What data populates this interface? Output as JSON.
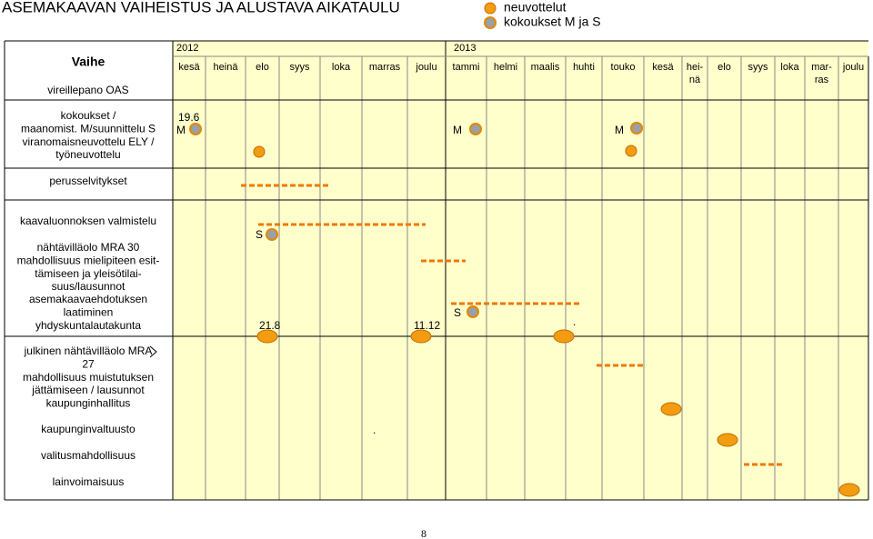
{
  "header": {
    "title": "ASEMAKAAVAN VAIHEISTUS JA ALUSTAVA AIKATAULU"
  },
  "legend": [
    "neuvottelut",
    "kokoukset M ja S"
  ],
  "table": {
    "phase_header": "Vaihe",
    "years": [
      "2012",
      "2013"
    ],
    "months": [
      [
        "kesä"
      ],
      [
        "heinä"
      ],
      [
        "elo"
      ],
      [
        "syys"
      ],
      [
        "loka"
      ],
      [
        "marras"
      ],
      [
        "joulu"
      ],
      [
        "tammi"
      ],
      [
        "helmi"
      ],
      [
        "maalis"
      ],
      [
        "huhti"
      ],
      [
        "touko"
      ],
      [
        "kesä"
      ],
      [
        "hei-",
        "nä"
      ],
      [
        "elo"
      ],
      [
        "syys"
      ],
      [
        "loka"
      ],
      [
        "mar-",
        "ras"
      ],
      [
        "joulu"
      ]
    ],
    "phases": [
      [
        "vireillepano OAS"
      ],
      [
        "kokoukset /",
        "maanomist. M/suunnittelu S",
        "viranomaisneuvottelu ELY /",
        "työneuvottelu"
      ],
      [
        "perusselvitykset"
      ],
      [
        "kaavaluonnoksen valmistelu"
      ],
      [
        "nähtävilläolo MRA 30",
        "mahdollisuus mielipiteen esit-",
        "tämiseen ja yleisötilai-",
        "suus/lausunnot"
      ],
      [
        "asemakaavaehdotuksen",
        "laatiminen"
      ],
      [
        "yhdyskuntalautakunta"
      ],
      [
        "julkinen nähtävilläolo MRA",
        "27",
        "mahdollisuus muistutuksen",
        "jättämiseen / lausunnot",
        "kaupunginhallitus"
      ],
      [
        "kaupunginvaltuusto"
      ],
      [
        "valitusmahdollisuus"
      ],
      [
        "lainvoimaisuus"
      ]
    ]
  },
  "annotations": [
    "19.6",
    "M",
    "M",
    "M",
    "S",
    "S",
    "21.8",
    "11.12",
    ".",
    "."
  ],
  "page_number": "8"
}
